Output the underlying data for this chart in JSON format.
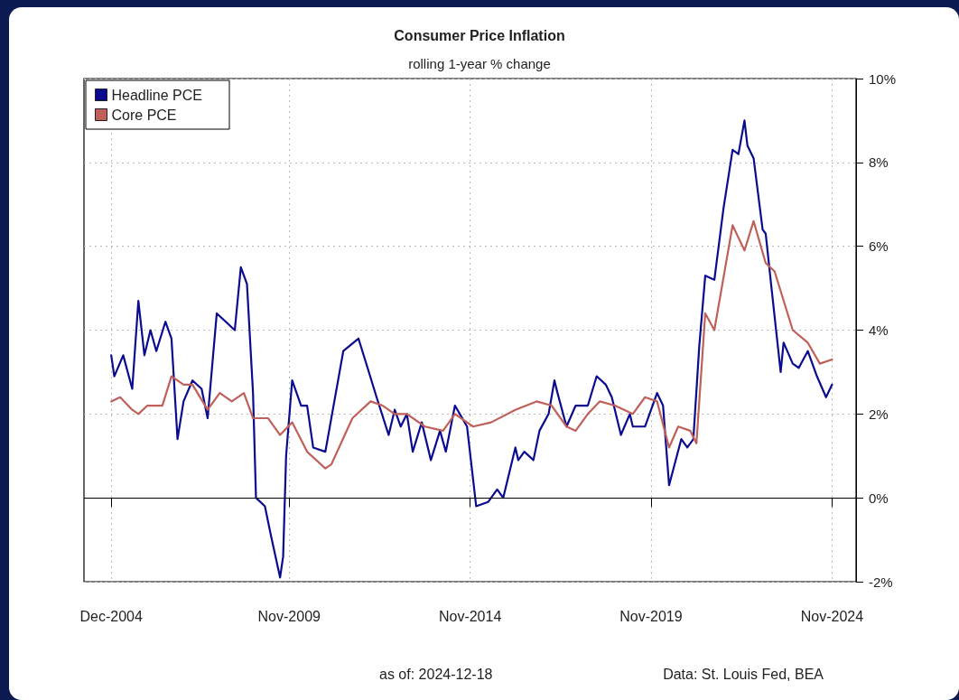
{
  "chart_data": {
    "type": "line",
    "title": "Consumer Price Inflation",
    "subtitle": "rolling 1-year % change",
    "annotations": [
      "as of:  2024-12-18",
      "Data: St. Louis Fed, BEA"
    ],
    "series": [
      {
        "name": "Headline PCE",
        "color": "#0b0b8f",
        "x": [
          "2004-12",
          "2005-01",
          "2005-04",
          "2005-07",
          "2005-09",
          "2005-11",
          "2006-01",
          "2006-03",
          "2006-06",
          "2006-08",
          "2006-10",
          "2006-12",
          "2007-03",
          "2007-06",
          "2007-08",
          "2007-11",
          "2008-05",
          "2008-07",
          "2008-09",
          "2008-11",
          "2008-12",
          "2009-03",
          "2009-05",
          "2009-08",
          "2009-09",
          "2009-10",
          "2009-12",
          "2010-03",
          "2010-05",
          "2010-07",
          "2010-11",
          "2011-05",
          "2011-10",
          "2012-01",
          "2012-04",
          "2012-08",
          "2012-10",
          "2012-12",
          "2013-02",
          "2013-04",
          "2013-07",
          "2013-10",
          "2014-01",
          "2014-03",
          "2014-06",
          "2014-10",
          "2015-01",
          "2015-05",
          "2015-08",
          "2015-10",
          "2016-02",
          "2016-03",
          "2016-05",
          "2016-08",
          "2016-10",
          "2017-01",
          "2017-03",
          "2017-04",
          "2017-07",
          "2017-10",
          "2018-02",
          "2018-05",
          "2018-08",
          "2018-10",
          "2019-01",
          "2019-04",
          "2019-05",
          "2019-09",
          "2020-01",
          "2020-03",
          "2020-05",
          "2020-09",
          "2020-11",
          "2021-01",
          "2021-03",
          "2021-05",
          "2021-08",
          "2021-11",
          "2022-02",
          "2022-04",
          "2022-06",
          "2022-07",
          "2022-09",
          "2022-12",
          "2023-01",
          "2023-03",
          "2023-06",
          "2023-07",
          "2023-10",
          "2023-12",
          "2024-03",
          "2024-06",
          "2024-09",
          "2024-11"
        ],
        "values": [
          3.4,
          2.9,
          3.4,
          2.6,
          4.7,
          3.4,
          4.0,
          3.5,
          4.2,
          3.8,
          1.4,
          2.3,
          2.8,
          2.6,
          1.9,
          4.4,
          4.0,
          5.5,
          5.1,
          2.5,
          0.0,
          -0.2,
          -0.9,
          -1.9,
          -1.4,
          1.0,
          2.8,
          2.2,
          2.2,
          1.2,
          1.1,
          3.5,
          3.8,
          3.1,
          2.4,
          1.5,
          2.1,
          1.7,
          2.0,
          1.1,
          1.8,
          0.9,
          1.6,
          1.1,
          2.2,
          1.7,
          -0.2,
          -0.1,
          0.2,
          0.0,
          1.2,
          0.9,
          1.1,
          0.9,
          1.6,
          2.0,
          2.8,
          2.5,
          1.7,
          2.2,
          2.2,
          2.9,
          2.7,
          2.4,
          1.5,
          2.0,
          1.7,
          1.7,
          2.5,
          2.2,
          0.3,
          1.4,
          1.2,
          1.4,
          3.6,
          5.3,
          5.2,
          6.9,
          8.3,
          8.2,
          9.0,
          8.4,
          8.1,
          6.4,
          6.3,
          5.0,
          3.0,
          3.7,
          3.2,
          3.1,
          3.5,
          2.9,
          2.4,
          2.7
        ]
      },
      {
        "name": "Core PCE",
        "color": "#c0605a",
        "x": [
          "2004-12",
          "2005-03",
          "2005-07",
          "2005-09",
          "2005-12",
          "2006-05",
          "2006-08",
          "2006-12",
          "2007-03",
          "2007-08",
          "2007-12",
          "2008-04",
          "2008-08",
          "2008-11",
          "2009-04",
          "2009-08",
          "2009-12",
          "2010-05",
          "2010-11",
          "2011-01",
          "2011-08",
          "2012-02",
          "2012-06",
          "2012-10",
          "2013-02",
          "2013-08",
          "2014-02",
          "2014-06",
          "2014-12",
          "2015-06",
          "2016-02",
          "2016-09",
          "2017-02",
          "2017-07",
          "2017-10",
          "2018-02",
          "2018-06",
          "2018-11",
          "2019-05",
          "2019-09",
          "2020-01",
          "2020-05",
          "2020-08",
          "2020-12",
          "2021-02",
          "2021-05",
          "2021-08",
          "2022-02",
          "2022-06",
          "2022-09",
          "2023-01",
          "2023-04",
          "2023-10",
          "2024-03",
          "2024-07",
          "2024-11"
        ],
        "values": [
          2.3,
          2.4,
          2.1,
          2.0,
          2.2,
          2.2,
          2.9,
          2.7,
          2.7,
          2.1,
          2.5,
          2.3,
          2.5,
          1.9,
          1.9,
          1.5,
          1.8,
          1.1,
          0.7,
          0.8,
          1.9,
          2.3,
          2.2,
          2.0,
          2.0,
          1.7,
          1.6,
          2.0,
          1.7,
          1.8,
          2.1,
          2.3,
          2.2,
          1.7,
          1.6,
          2.0,
          2.3,
          2.2,
          2.0,
          2.4,
          2.3,
          1.2,
          1.7,
          1.6,
          1.3,
          4.4,
          4.0,
          6.5,
          5.9,
          6.6,
          5.6,
          5.4,
          4.0,
          3.7,
          3.2,
          3.3
        ]
      }
    ],
    "xlim": [
      "2004-03",
      "2025-07"
    ],
    "xticks": [
      {
        "value": "2004-12",
        "label": "Dec-2004"
      },
      {
        "value": "2009-11",
        "label": "Nov-2009"
      },
      {
        "value": "2014-11",
        "label": "Nov-2014"
      },
      {
        "value": "2019-11",
        "label": "Nov-2019"
      },
      {
        "value": "2024-11",
        "label": "Nov-2024"
      }
    ],
    "ylim": [
      -2,
      10
    ],
    "yticks": [
      {
        "value": -2,
        "label": "-2%"
      },
      {
        "value": 0,
        "label": "0%"
      },
      {
        "value": 2,
        "label": "2%"
      },
      {
        "value": 4,
        "label": "4%"
      },
      {
        "value": 6,
        "label": "6%"
      },
      {
        "value": 8,
        "label": "8%"
      },
      {
        "value": 10,
        "label": "10%"
      }
    ],
    "ref_lines": [
      {
        "axis": "y",
        "value": 0,
        "color": "#000000"
      }
    ],
    "grid": true,
    "legend": "top left",
    "marker": "none",
    "line_style": "solid"
  }
}
